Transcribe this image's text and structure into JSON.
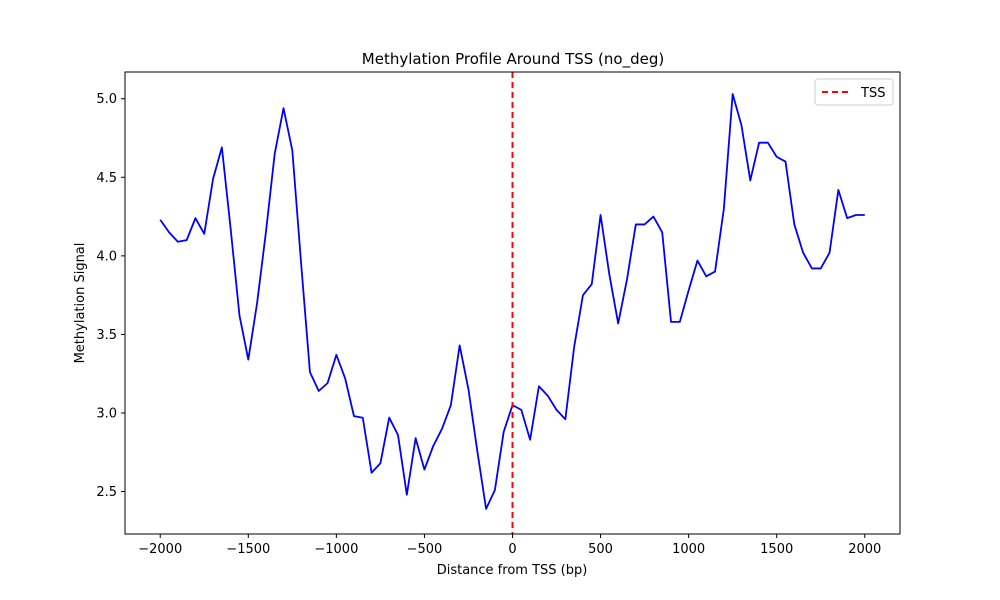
{
  "chart_data": {
    "type": "line",
    "title": "Methylation Profile Around TSS (no_deg)",
    "xlabel": "Distance from TSS (bp)",
    "ylabel": "Methylation Signal",
    "xlim": [
      -2200,
      2200
    ],
    "ylim": [
      2.23,
      5.17
    ],
    "xticks": [
      -2000,
      -1500,
      -1000,
      -500,
      0,
      500,
      1000,
      1500,
      2000
    ],
    "xtick_labels": [
      "−2000",
      "−1500",
      "−1000",
      "−500",
      "0",
      "500",
      "1000",
      "1500",
      "2000"
    ],
    "yticks": [
      2.5,
      3.0,
      3.5,
      4.0,
      4.5,
      5.0
    ],
    "ytick_labels": [
      "2.5",
      "3.0",
      "3.5",
      "4.0",
      "4.5",
      "5.0"
    ],
    "grid": false,
    "legend_position": "top-right",
    "series": [
      {
        "color": "#0000ff",
        "x": [
          -2000,
          -1950,
          -1900,
          -1850,
          -1800,
          -1750,
          -1700,
          -1650,
          -1600,
          -1550,
          -1500,
          -1450,
          -1400,
          -1350,
          -1300,
          -1250,
          -1200,
          -1150,
          -1100,
          -1050,
          -1000,
          -950,
          -900,
          -850,
          -800,
          -750,
          -700,
          -650,
          -600,
          -550,
          -500,
          -450,
          -400,
          -350,
          -300,
          -250,
          -200,
          -150,
          -100,
          -50,
          0,
          50,
          100,
          150,
          200,
          250,
          300,
          350,
          400,
          450,
          500,
          550,
          600,
          650,
          700,
          750,
          800,
          850,
          900,
          950,
          1000,
          1050,
          1100,
          1150,
          1200,
          1250,
          1300,
          1350,
          1400,
          1450,
          1500,
          1550,
          1600,
          1650,
          1700,
          1750,
          1800,
          1850,
          1900,
          1950,
          2000
        ],
        "y": [
          4.23,
          4.15,
          4.09,
          4.1,
          4.24,
          4.14,
          4.49,
          4.69,
          4.17,
          3.62,
          3.34,
          3.7,
          4.15,
          4.65,
          4.94,
          4.67,
          3.95,
          3.26,
          3.14,
          3.19,
          3.37,
          3.22,
          2.98,
          2.97,
          2.62,
          2.68,
          2.97,
          2.86,
          2.48,
          2.84,
          2.64,
          2.79,
          2.9,
          3.05,
          3.43,
          3.15,
          2.76,
          2.39,
          2.51,
          2.88,
          3.05,
          3.02,
          2.83,
          3.17,
          3.11,
          3.02,
          2.96,
          3.42,
          3.75,
          3.82,
          4.26,
          3.88,
          3.57,
          3.85,
          4.2,
          4.2,
          4.25,
          4.15,
          3.58,
          3.58,
          3.78,
          3.97,
          3.87,
          3.9,
          4.3,
          5.03,
          4.83,
          4.48,
          4.72,
          4.72,
          4.63,
          4.6,
          4.2,
          4.02,
          3.92,
          3.92,
          4.02,
          4.42,
          4.24,
          4.26,
          4.26
        ]
      }
    ],
    "vline": {
      "x": 0,
      "label": "TSS",
      "color": "#ff0000",
      "style": "dashed"
    }
  }
}
